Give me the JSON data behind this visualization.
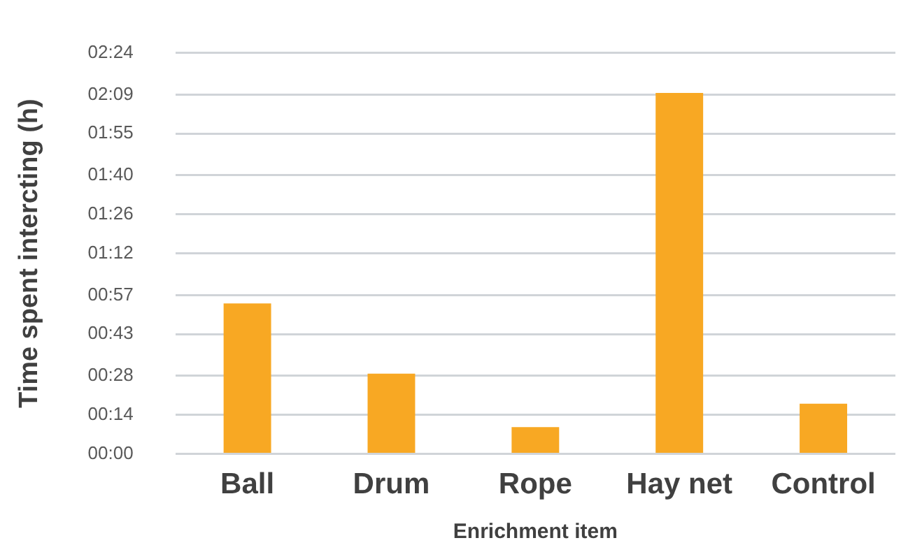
{
  "chart_data": {
    "type": "bar",
    "xlabel": "Enrichment item",
    "ylabel": "Time spent intercting (h)",
    "categories": [
      "Ball",
      "Drum",
      "Rope",
      "Hay net",
      "Control"
    ],
    "values": [
      0.9,
      0.48,
      0.16,
      2.16,
      0.3
    ],
    "color": "#f8a823",
    "ylim": [
      0,
      2.4
    ],
    "yticks": [
      {
        "value": 0,
        "label": "00:00"
      },
      {
        "value": 0.2333,
        "label": "00:14"
      },
      {
        "value": 0.4667,
        "label": "00:28"
      },
      {
        "value": 0.7167,
        "label": "00:43"
      },
      {
        "value": 0.95,
        "label": "00:57"
      },
      {
        "value": 1.2,
        "label": "01:12"
      },
      {
        "value": 1.4333,
        "label": "01:26"
      },
      {
        "value": 1.6667,
        "label": "01:40"
      },
      {
        "value": 1.9167,
        "label": "01:55"
      },
      {
        "value": 2.15,
        "label": "02:09"
      },
      {
        "value": 2.4,
        "label": "02:24"
      }
    ],
    "grid": "y",
    "legend": false
  }
}
